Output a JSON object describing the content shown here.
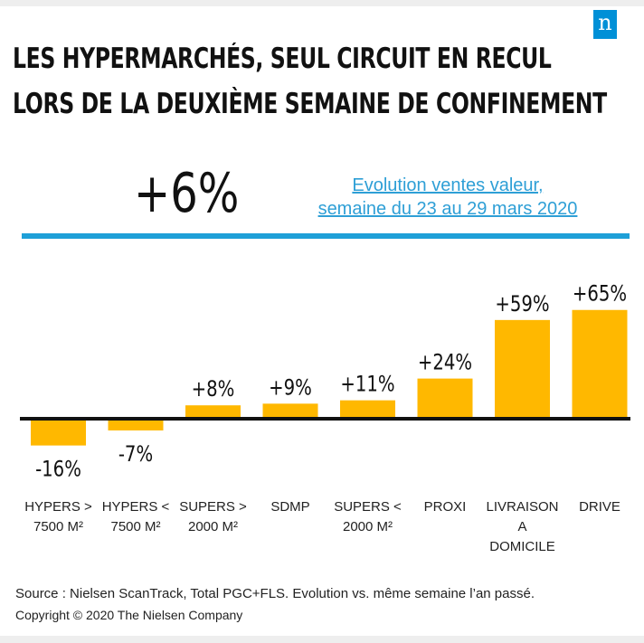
{
  "logo": {
    "letter": "n",
    "color": "#0090d7"
  },
  "title_line1": "LES HYPERMARCHÉS, SEUL CIRCUIT EN RECUL",
  "title_line2": "LORS DE LA DEUXIÈME SEMAINE DE CONFINEMENT",
  "total": "+6%",
  "subtitle_line1": "Evolution ventes valeur,",
  "subtitle_line2": "semaine du 23 au 29 mars 2020",
  "colors": {
    "bar": "#ffb800",
    "accent": "#1ea0d8",
    "subtitle": "#2e9fd6"
  },
  "chart_data": {
    "type": "bar",
    "categories": [
      [
        "HYPERS >",
        "7500 M²"
      ],
      [
        "HYPERS <",
        "7500 M²"
      ],
      [
        "SUPERS >",
        "2000 M²"
      ],
      [
        "SDMP"
      ],
      [
        "SUPERS <",
        "2000 M²"
      ],
      [
        "PROXI"
      ],
      [
        "LIVRAISON",
        "A",
        "DOMICILE"
      ],
      [
        "DRIVE"
      ]
    ],
    "values": [
      -16,
      -7,
      8,
      9,
      11,
      24,
      59,
      65
    ],
    "data_labels": [
      "-16%",
      "-7%",
      "+8%",
      "+9%",
      "+11%",
      "+24%",
      "+59%",
      "+65%"
    ],
    "title": "Evolution ventes valeur, semaine du 23 au 29 mars 2020",
    "ylim": [
      -20,
      70
    ],
    "grid": false
  },
  "footer": {
    "source": "Source : Nielsen ScanTrack, Total PGC+FLS. Evolution vs. même semaine l’an passé.",
    "copyright": "Copyright © 2020 The Nielsen Company"
  }
}
